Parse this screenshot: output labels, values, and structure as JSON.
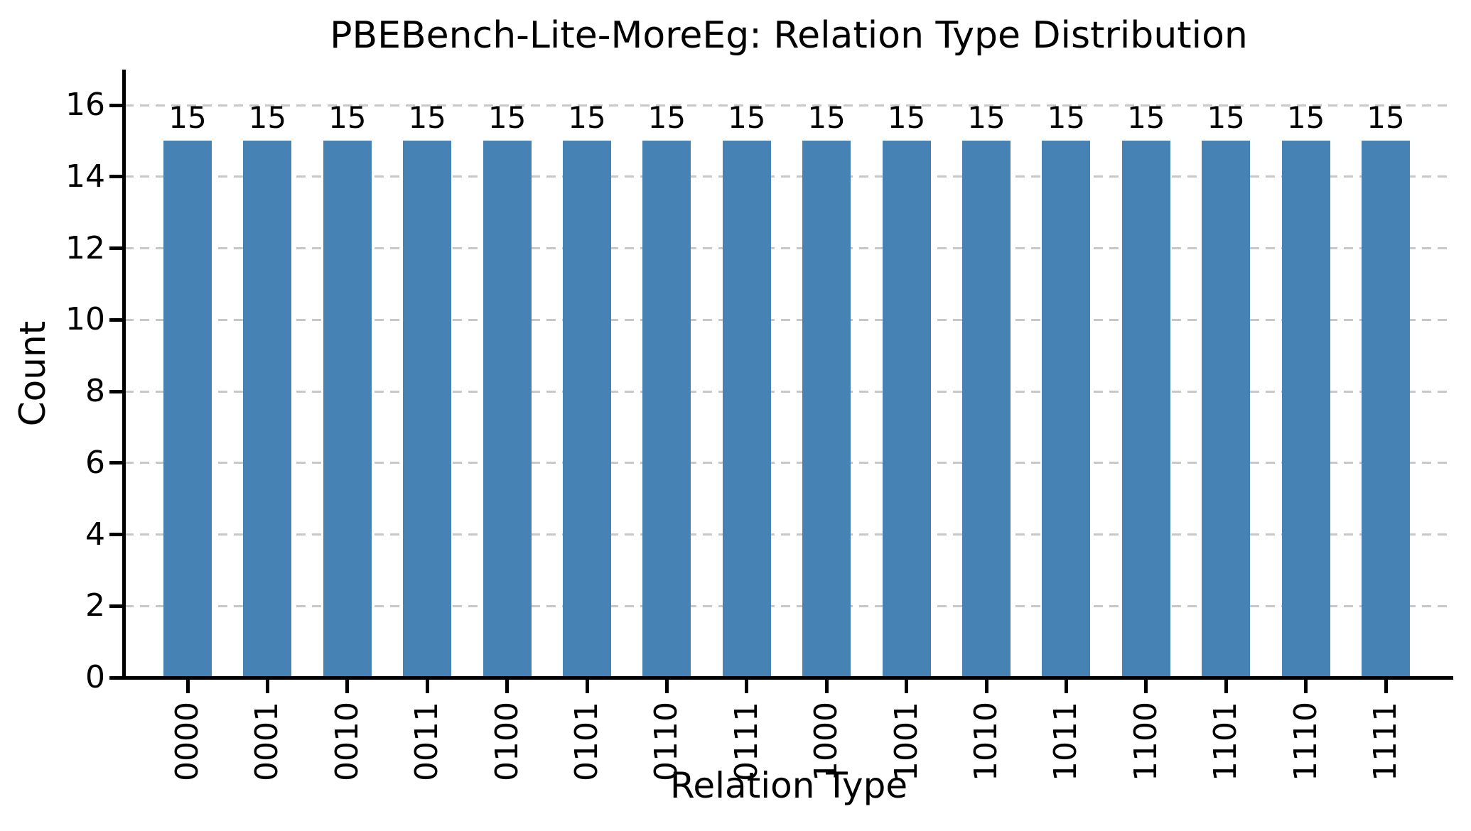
{
  "chart_data": {
    "type": "bar",
    "title": "PBEBench-Lite-MoreEg: Relation Type Distribution",
    "xlabel": "Relation Type",
    "ylabel": "Count",
    "categories": [
      "0000",
      "0001",
      "0010",
      "0011",
      "0100",
      "0101",
      "0110",
      "0111",
      "1000",
      "1001",
      "1010",
      "1011",
      "1100",
      "1101",
      "1110",
      "1111"
    ],
    "values": [
      15,
      15,
      15,
      15,
      15,
      15,
      15,
      15,
      15,
      15,
      15,
      15,
      15,
      15,
      15,
      15
    ],
    "yticks": [
      0,
      2,
      4,
      6,
      8,
      10,
      12,
      14,
      16
    ],
    "ylim": [
      0,
      16
    ],
    "bar_color": "#4682b4",
    "grid": "horizontal-dashed",
    "gridline_color": "#c8c8c8",
    "legend_position": "none"
  }
}
